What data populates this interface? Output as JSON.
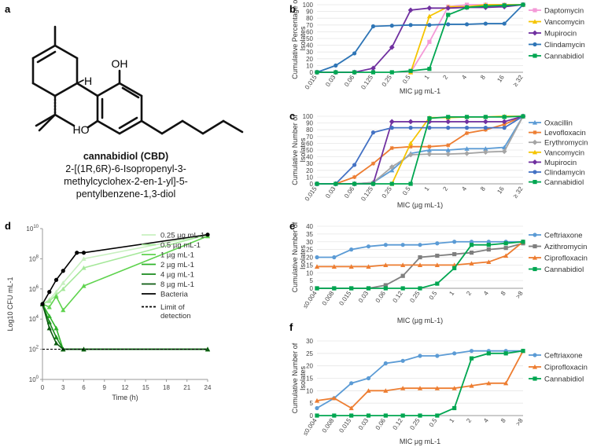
{
  "panel_letters": {
    "a": "a",
    "b": "b",
    "c": "c",
    "d": "d",
    "e": "e",
    "f": "f"
  },
  "molecule": {
    "name": "cannabidiol (CBD)",
    "iupac_line1": "2-[(1R,6R)-6-Isopropenyl-3-",
    "iupac_line2": "methylcyclohex-2-en-1-yl]-5-",
    "iupac_line3": "pentylbenzene-1,3-diol",
    "atom_labels": {
      "oh_top": "OH",
      "ho_bottom": "HO",
      "h": "H"
    }
  },
  "chart_data": [
    {
      "id": "b",
      "type": "line",
      "categories": [
        "0.015",
        "0.03",
        "0.06",
        "0.125",
        "0.25",
        "0.5",
        "1",
        "2",
        "4",
        "8",
        "16",
        "≥ 32"
      ],
      "ylabel": "Cumulative Percentage of Isolates",
      "xlabel": "MIC µg mL-1",
      "ylim": [
        0,
        100
      ],
      "yticks": [
        0,
        10,
        20,
        30,
        40,
        50,
        60,
        70,
        80,
        90,
        100
      ],
      "series": [
        {
          "name": "Daptomycin",
          "color": "#f49ad7",
          "marker": "square",
          "values": [
            null,
            null,
            null,
            null,
            null,
            0,
            45,
            97,
            100,
            100,
            100,
            100
          ]
        },
        {
          "name": "Vancomycin",
          "color": "#f5c400",
          "marker": "triangle",
          "values": [
            null,
            null,
            null,
            null,
            null,
            0,
            83,
            97,
            97,
            100,
            100,
            100
          ]
        },
        {
          "name": "Mupirocin",
          "color": "#7030a0",
          "marker": "diamond",
          "values": [
            0,
            0,
            0,
            6,
            37,
            92,
            95,
            95,
            96,
            96,
            97,
            100
          ]
        },
        {
          "name": "Clindamycin",
          "color": "#2e75b6",
          "marker": "circle",
          "values": [
            0,
            10,
            28,
            68,
            69,
            70,
            70,
            71,
            71,
            72,
            72,
            100
          ]
        },
        {
          "name": "Cannabidiol",
          "color": "#00a651",
          "marker": "square",
          "values": [
            0,
            0,
            0,
            0,
            0,
            2,
            5,
            85,
            96,
            98,
            99,
            100
          ]
        }
      ]
    },
    {
      "id": "c",
      "type": "line",
      "categories": [
        "0.015",
        "0.03",
        "0.06",
        "0.125",
        "0.25",
        "0.5",
        "1",
        "2",
        "4",
        "8",
        "16",
        "≥ 32"
      ],
      "ylabel": "Cumulative Number of Isolates",
      "xlabel": "MIC (µg mL-1)",
      "ylim": [
        0,
        100
      ],
      "yticks": [
        0,
        10,
        20,
        30,
        40,
        50,
        60,
        70,
        80,
        90,
        100
      ],
      "series": [
        {
          "name": "Oxacillin",
          "color": "#5b9bd5",
          "marker": "triangle",
          "values": [
            0,
            0,
            0,
            2,
            20,
            45,
            50,
            50,
            52,
            52,
            54,
            100
          ]
        },
        {
          "name": "Levofloxacin",
          "color": "#ed7d31",
          "marker": "star",
          "values": [
            0,
            0,
            10,
            30,
            53,
            55,
            55,
            57,
            75,
            80,
            88,
            100
          ]
        },
        {
          "name": "Erythromycin",
          "color": "#a5a5a5",
          "marker": "diamond",
          "values": [
            0,
            0,
            0,
            2,
            25,
            43,
            44,
            44,
            45,
            47,
            48,
            100
          ]
        },
        {
          "name": "Vancomycin",
          "color": "#f5c400",
          "marker": "triangle",
          "values": [
            null,
            null,
            null,
            null,
            0,
            60,
            98,
            98,
            99,
            99,
            100,
            100
          ]
        },
        {
          "name": "Mupirocin",
          "color": "#7030a0",
          "marker": "diamond",
          "values": [
            0,
            0,
            0,
            0,
            92,
            92,
            92,
            92,
            92,
            92,
            92,
            100
          ]
        },
        {
          "name": "Clindamycin",
          "color": "#4472c4",
          "marker": "circle",
          "values": [
            0,
            0,
            28,
            76,
            83,
            83,
            83,
            83,
            83,
            83,
            83,
            100
          ]
        },
        {
          "name": "Cannabidiol",
          "color": "#00a651",
          "marker": "square",
          "values": [
            0,
            0,
            0,
            0,
            0,
            0,
            97,
            99,
            99,
            99,
            99,
            100
          ]
        }
      ]
    },
    {
      "id": "d",
      "type": "line",
      "x_ticks": [
        0,
        3,
        6,
        9,
        12,
        15,
        18,
        21,
        24
      ],
      "xlabel": "Time (h)",
      "ylabel": "Log10 CFU mL-1",
      "yscale": "log",
      "ylim_exp": [
        0,
        10
      ],
      "ytick_labels": [
        "10^0",
        "10^2",
        "10^4",
        "10^6",
        "10^8",
        "10^10"
      ],
      "legend": [
        {
          "name": "0.25 µg mL-1",
          "color": "#c8f0c0",
          "style": "solid"
        },
        {
          "name": "0.5 µg mL-1",
          "color": "#a5e89a",
          "style": "solid"
        },
        {
          "name": "1 µg mL-1",
          "color": "#5fd34e",
          "style": "solid"
        },
        {
          "name": "2 µg mL-1",
          "color": "#2fb52a",
          "style": "solid"
        },
        {
          "name": "4 µg mL-1",
          "color": "#188a1b",
          "style": "solid"
        },
        {
          "name": "8 µg mL-1",
          "color": "#0b5a10",
          "style": "solid"
        },
        {
          "name": "Bacteria",
          "color": "#000000",
          "style": "solid"
        },
        {
          "name": "Limit of\ndetection",
          "color": "#000000",
          "style": "dashed"
        }
      ],
      "series": [
        {
          "name": "0.25 µg mL-1",
          "color": "#c8f0c0",
          "x": [
            0,
            1,
            2,
            3,
            6,
            24
          ],
          "log10": [
            5.0,
            5.3,
            5.8,
            6.4,
            8.0,
            9.6
          ]
        },
        {
          "name": "0.5 µg mL-1",
          "color": "#a5e89a",
          "x": [
            0,
            1,
            2,
            3,
            6,
            24
          ],
          "log10": [
            5.0,
            5.2,
            5.6,
            6.0,
            7.4,
            9.6
          ]
        },
        {
          "name": "1 µg mL-1",
          "color": "#5fd34e",
          "x": [
            0,
            1,
            2,
            3,
            6,
            24
          ],
          "log10": [
            5.0,
            4.8,
            5.5,
            4.6,
            6.2,
            9.5
          ]
        },
        {
          "name": "2 µg mL-1",
          "color": "#2fb52a",
          "x": [
            0,
            1,
            2,
            3,
            6,
            24
          ],
          "log10": [
            5.0,
            4.2,
            3.4,
            2.0,
            2.0,
            2.0
          ]
        },
        {
          "name": "4 µg mL-1",
          "color": "#188a1b",
          "x": [
            0,
            1,
            2,
            3,
            6,
            24
          ],
          "log10": [
            5.0,
            3.8,
            2.8,
            2.0,
            2.0,
            2.0
          ]
        },
        {
          "name": "8 µg mL-1",
          "color": "#0b5a10",
          "x": [
            0,
            1,
            2,
            3,
            6,
            24
          ],
          "log10": [
            5.0,
            3.4,
            2.4,
            2.0,
            2.0,
            2.0
          ]
        },
        {
          "name": "Bacteria",
          "color": "#000000",
          "x": [
            0,
            1,
            2,
            3,
            5,
            6,
            24
          ],
          "log10": [
            5.0,
            5.8,
            6.6,
            7.2,
            8.4,
            8.4,
            9.6
          ]
        },
        {
          "name": "Limit of detection",
          "color": "#000000",
          "dashed": true,
          "x": [
            0,
            24
          ],
          "log10": [
            2.0,
            2.0
          ]
        }
      ]
    },
    {
      "id": "e",
      "type": "line",
      "categories": [
        "≤0.004",
        "0.008",
        "0.015",
        "0.03",
        "0.06",
        "0.12",
        "0.25",
        "0.5",
        "1",
        "2",
        "4",
        "8",
        ">8"
      ],
      "ylabel": "Cumulative Number of Isolates",
      "xlabel": "MIC (µg mL-1)",
      "ylim": [
        0,
        40
      ],
      "yticks": [
        0,
        5,
        10,
        15,
        20,
        25,
        30,
        35,
        40
      ],
      "series": [
        {
          "name": "Ceftriaxone",
          "color": "#5b9bd5",
          "marker": "circle",
          "values": [
            20,
            20,
            25,
            27,
            28,
            28,
            28,
            29,
            30,
            30,
            30,
            30,
            30
          ]
        },
        {
          "name": "Azithromycin",
          "color": "#7f7f7f",
          "marker": "square",
          "values": [
            0,
            0,
            0,
            0,
            2,
            8,
            20,
            21,
            22,
            23,
            25,
            26,
            29
          ]
        },
        {
          "name": "Ciprofloxacin",
          "color": "#ed7d31",
          "marker": "triangle",
          "values": [
            14,
            14,
            14,
            14,
            15,
            15,
            15,
            15,
            15,
            16,
            17,
            21,
            30
          ]
        },
        {
          "name": "Cannabidiol",
          "color": "#00a651",
          "marker": "square",
          "values": [
            0,
            0,
            0,
            0,
            0,
            0,
            0,
            3,
            13,
            28,
            28,
            29,
            30
          ]
        }
      ]
    },
    {
      "id": "f",
      "type": "line",
      "categories": [
        "≤0.004",
        "0.008",
        "0.015",
        "0.03",
        "0.06",
        "0.12",
        "0.25",
        "0.5",
        "1",
        "2",
        "4",
        "8",
        ">8"
      ],
      "ylabel": "Cumulative Number of Isolates",
      "xlabel": "MIC μg mL-1",
      "ylim": [
        0,
        30
      ],
      "yticks": [
        0,
        5,
        10,
        15,
        20,
        25,
        30
      ],
      "series": [
        {
          "name": "Ceftriaxone",
          "color": "#5b9bd5",
          "marker": "circle",
          "values": [
            3,
            7,
            13,
            15,
            21,
            22,
            24,
            24,
            25,
            26,
            26,
            26,
            26
          ]
        },
        {
          "name": "Ciprofloxacin",
          "color": "#ed7d31",
          "marker": "triangle",
          "values": [
            6,
            7,
            3,
            10,
            10,
            11,
            11,
            11,
            11,
            12,
            13,
            13,
            26
          ]
        },
        {
          "name": "Cannabidiol",
          "color": "#00a651",
          "marker": "square",
          "values": [
            0,
            0,
            0,
            0,
            0,
            0,
            0,
            0,
            3,
            23,
            25,
            25,
            26
          ]
        }
      ]
    }
  ]
}
